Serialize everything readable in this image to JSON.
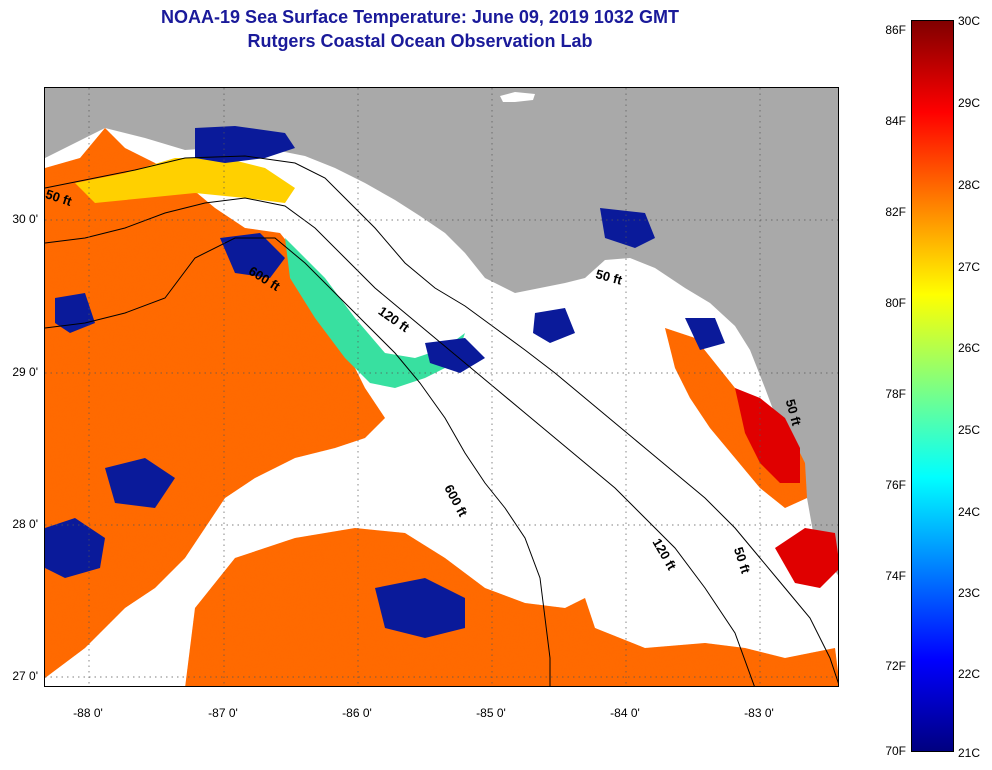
{
  "title": {
    "line1": "NOAA-19 Sea Surface Temperature:  June 09, 2019 1032 GMT",
    "line2": "Rutgers Coastal Ocean Observation Lab"
  },
  "axes": {
    "lat_ticks": [
      "30 0'",
      "29 0'",
      "28 0'",
      "27 0'"
    ],
    "lon_ticks": [
      "-88 0'",
      "-87 0'",
      "-86 0'",
      "-85 0'",
      "-84 0'",
      "-83 0'"
    ]
  },
  "contour_labels": {
    "c50_west": "50 ft",
    "c600_north": "600 ft",
    "c120_north": "120 ft",
    "c50_bigbend": "50 ft",
    "c50_east": "50 ft",
    "c600_south": "600 ft",
    "c120_south": "120 ft",
    "c50_south": "50 ft"
  },
  "colorbar": {
    "f_labels": [
      "86F",
      "84F",
      "82F",
      "80F",
      "78F",
      "76F",
      "74F",
      "72F",
      "70F"
    ],
    "c_labels": [
      "30C",
      "29C",
      "28C",
      "27C",
      "26C",
      "25C",
      "24C",
      "23C",
      "22C",
      "21C"
    ],
    "colors": [
      "#800000",
      "#ff0000",
      "#ff8000",
      "#ffff00",
      "#80ff80",
      "#00ffff",
      "#0080ff",
      "#0000ff",
      "#000080"
    ]
  },
  "map_colors": {
    "land": "#a9a9a9",
    "cloud": "#ffffff",
    "warm": "#ff6a00",
    "hot": "#e00000",
    "mild": "#ffd000",
    "cool": "#38e0a0",
    "cold": "#0a1a9a"
  }
}
